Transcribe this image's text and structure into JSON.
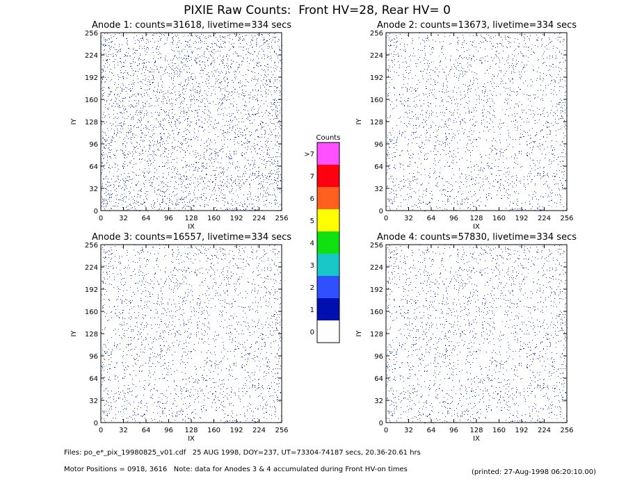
{
  "title": "PIXIE Raw Counts:  Front HV=28, Rear HV= 0",
  "chart_data": [
    {
      "type": "heatmap",
      "title": "Anode 1: counts=31618, livetime=334 secs",
      "xlabel": "IX",
      "ylabel": "IY",
      "xlim": [
        0,
        256
      ],
      "ylim": [
        0,
        256
      ],
      "xticks": [
        0,
        32,
        64,
        96,
        128,
        160,
        192,
        224,
        256
      ],
      "yticks": [
        0,
        32,
        64,
        96,
        128,
        160,
        192,
        224,
        256
      ]
    },
    {
      "type": "heatmap",
      "title": "Anode 2: counts=13673, livetime=334 secs",
      "xlabel": "IX",
      "ylabel": "IY",
      "xlim": [
        0,
        256
      ],
      "ylim": [
        0,
        256
      ],
      "xticks": [
        0,
        32,
        64,
        96,
        128,
        160,
        192,
        224,
        256
      ],
      "yticks": [
        0,
        32,
        64,
        96,
        128,
        160,
        192,
        224,
        256
      ]
    },
    {
      "type": "heatmap",
      "title": "Anode 3: counts=16557, livetime=334 secs",
      "xlabel": "IX",
      "ylabel": "IY",
      "xlim": [
        0,
        256
      ],
      "ylim": [
        0,
        256
      ],
      "xticks": [
        0,
        32,
        64,
        96,
        128,
        160,
        192,
        224,
        256
      ],
      "yticks": [
        0,
        32,
        64,
        96,
        128,
        160,
        192,
        224,
        256
      ]
    },
    {
      "type": "heatmap",
      "title": "Anode 4: counts=57830, livetime=334 secs",
      "xlabel": "IX",
      "ylabel": "IY",
      "xlim": [
        0,
        256
      ],
      "ylim": [
        0,
        256
      ],
      "xticks": [
        0,
        32,
        64,
        96,
        128,
        160,
        192,
        224,
        256
      ],
      "yticks": [
        0,
        32,
        64,
        96,
        128,
        160,
        192,
        224,
        256
      ]
    }
  ],
  "colorbar": {
    "title": "Counts",
    "levels": [
      {
        "label": "0",
        "color": "#ffffff"
      },
      {
        "label": "1",
        "color": "#0010b0"
      },
      {
        "label": "2",
        "color": "#3050ff"
      },
      {
        "label": "3",
        "color": "#18c8c8"
      },
      {
        "label": "4",
        "color": "#10e010"
      },
      {
        "label": "5",
        "color": "#ffff00"
      },
      {
        "label": "6",
        "color": "#ff6020"
      },
      {
        "label": "7",
        "color": "#ff0010"
      },
      {
        "label": ">7",
        "color": "#ff50ff"
      }
    ]
  },
  "footer": [
    "Files: po_e*_pix_19980825_v01.cdf   25 AUG 1998, DOY=237, UT=73304-74187 secs, 20.36-20.61 hrs",
    "Motor Positions = 0918, 3616   Note: data for Anodes 3 & 4 accumulated during Front HV-on times",
    "(printed: 27-Aug-1998 06:20:10.00)"
  ]
}
